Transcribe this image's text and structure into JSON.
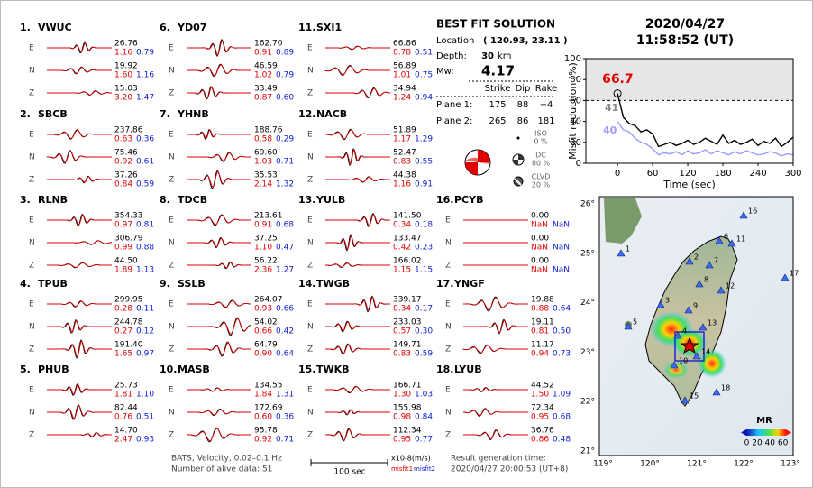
{
  "header": {
    "date": "2020/04/27",
    "time": "11:58:52  (UT)"
  },
  "component_labels": [
    "E",
    "N",
    "Z"
  ],
  "stations": [
    {
      "id": "1.",
      "name": "VWUC",
      "rows": [
        [
          "26.76",
          "1.16",
          "0.79"
        ],
        [
          "19.92",
          "1.60",
          "1.16"
        ],
        [
          "15.03",
          "3.20",
          "1.47"
        ]
      ]
    },
    {
      "id": "2.",
      "name": "SBCB",
      "rows": [
        [
          "237.86",
          "0.63",
          "0.36"
        ],
        [
          "75.46",
          "0.92",
          "0.61"
        ],
        [
          "37.26",
          "0.84",
          "0.59"
        ]
      ]
    },
    {
      "id": "3.",
      "name": "RLNB",
      "rows": [
        [
          "354.33",
          "0.97",
          "0.81"
        ],
        [
          "306.79",
          "0.99",
          "0.88"
        ],
        [
          "44.50",
          "1.89",
          "1.13"
        ]
      ]
    },
    {
      "id": "4.",
      "name": "TPUB",
      "rows": [
        [
          "299.95",
          "0.28",
          "0.11"
        ],
        [
          "244.78",
          "0.27",
          "0.12"
        ],
        [
          "191.40",
          "1.65",
          "0.97"
        ]
      ]
    },
    {
      "id": "5.",
      "name": "PHUB",
      "rows": [
        [
          "25.73",
          "1.81",
          "1.10"
        ],
        [
          "82.44",
          "0.76",
          "0.51"
        ],
        [
          "14.70",
          "2.47",
          "0.93"
        ]
      ]
    },
    {
      "id": "6.",
      "name": "YD07",
      "rows": [
        [
          "162.70",
          "0.91",
          "0.89"
        ],
        [
          "46.59",
          "1.02",
          "0.79"
        ],
        [
          "33.49",
          "0.87",
          "0.60"
        ]
      ]
    },
    {
      "id": "7.",
      "name": "YHNB",
      "rows": [
        [
          "188.76",
          "0.58",
          "0.29"
        ],
        [
          "69.60",
          "1.03",
          "0.71"
        ],
        [
          "35.53",
          "2.14",
          "1.32"
        ]
      ]
    },
    {
      "id": "8.",
      "name": "TDCB",
      "rows": [
        [
          "213.61",
          "0.91",
          "0.68"
        ],
        [
          "37.25",
          "1.10",
          "0.47"
        ],
        [
          "56.22",
          "2.36",
          "1.27"
        ]
      ]
    },
    {
      "id": "9.",
      "name": "SSLB",
      "rows": [
        [
          "264.07",
          "0.93",
          "0.66"
        ],
        [
          "54.02",
          "0.66",
          "0.42"
        ],
        [
          "64.79",
          "0.90",
          "0.64"
        ]
      ]
    },
    {
      "id": "10.",
      "name": "MASB",
      "rows": [
        [
          "134.55",
          "1.84",
          "1.31"
        ],
        [
          "172.69",
          "0.60",
          "0.36"
        ],
        [
          "95.78",
          "0.92",
          "0.71"
        ]
      ]
    },
    {
      "id": "11.",
      "name": "SXI1",
      "rows": [
        [
          "66.86",
          "0.78",
          "0.51"
        ],
        [
          "56.89",
          "1.01",
          "0.75"
        ],
        [
          "34.94",
          "1.24",
          "0.94"
        ]
      ]
    },
    {
      "id": "12.",
      "name": "NACB",
      "rows": [
        [
          "51.89",
          "1.17",
          "1.29"
        ],
        [
          "52.47",
          "0.83",
          "0.55"
        ],
        [
          "44.38",
          "1.16",
          "0.91"
        ]
      ]
    },
    {
      "id": "13.",
      "name": "YULB",
      "rows": [
        [
          "141.50",
          "0.34",
          "0.18"
        ],
        [
          "133.47",
          "0.42",
          "0.23"
        ],
        [
          "166.02",
          "1.15",
          "1.15"
        ]
      ]
    },
    {
      "id": "14.",
      "name": "TWGB",
      "rows": [
        [
          "339.17",
          "0.34",
          "0.17"
        ],
        [
          "233.03",
          "0.57",
          "0.30"
        ],
        [
          "149.71",
          "0.83",
          "0.59"
        ]
      ]
    },
    {
      "id": "15.",
      "name": "TWKB",
      "rows": [
        [
          "166.71",
          "1.30",
          "1.03"
        ],
        [
          "155.98",
          "0.98",
          "0.84"
        ],
        [
          "112.34",
          "0.95",
          "0.77"
        ]
      ]
    },
    {
      "id": "16.",
      "name": "PCYB",
      "rows": [
        [
          "0.00",
          "NaN",
          "NaN"
        ],
        [
          "0.00",
          "NaN",
          "NaN"
        ],
        [
          "0.00",
          "NaN",
          "NaN"
        ]
      ]
    },
    {
      "id": "17.",
      "name": "YNGF",
      "rows": [
        [
          "19.88",
          "0.88",
          "0.64"
        ],
        [
          "19.11",
          "0.81",
          "0.50"
        ],
        [
          "11.17",
          "0.94",
          "0.73"
        ]
      ]
    },
    {
      "id": "18.",
      "name": "LYUB",
      "rows": [
        [
          "44.52",
          "1.50",
          "1.09"
        ],
        [
          "72.34",
          "0.95",
          "0.68"
        ],
        [
          "36.76",
          "0.86",
          "0.48"
        ]
      ]
    }
  ],
  "solution": {
    "title": "BEST FIT SOLUTION",
    "location_label": "Location",
    "location": "( 120.93, 23.11 )",
    "depth_label": "Depth:",
    "depth": "30",
    "depth_unit": "km",
    "mw_label": "Mw:",
    "mw": "4.17",
    "headers": [
      "Strike",
      "Dip",
      "Rake"
    ],
    "planes": [
      {
        "label": "Plane 1:",
        "values": [
          "175",
          "88",
          "−4"
        ]
      },
      {
        "label": "Plane 2:",
        "values": [
          "265",
          "86",
          "181"
        ]
      }
    ],
    "components": [
      {
        "label": "ISO",
        "value": "0 %"
      },
      {
        "label": "DC",
        "value": "80 %"
      },
      {
        "label": "CLVD",
        "value": "20 %"
      }
    ]
  },
  "footer": {
    "filter": "BATS, Velocity, 0.02–0.1 Hz",
    "alive": "Number of alive data: 51",
    "scale": "100 sec",
    "unit": "x10-8(m/s)",
    "misfit1": "misfit1",
    "misfit2": "misfit2",
    "result_label": "Result generation time:",
    "result_time": "2020/04/27 20:00:53 (UT+8)"
  },
  "map": {
    "lat_labels": [
      "26°",
      "25°",
      "24°",
      "23°",
      "22°",
      "21°"
    ],
    "lon_labels": [
      "119°",
      "120°",
      "121°",
      "122°",
      "123°"
    ],
    "station_labels": [
      "1",
      "2",
      "3",
      "4",
      "5",
      "6",
      "7",
      "8",
      "9",
      "10",
      "11",
      "12",
      "13",
      "14",
      "15",
      "16",
      "17",
      "18"
    ],
    "colorbar_title": "MR",
    "colorbar_labels": "0 20 40 60"
  },
  "chart_data": {
    "type": "line",
    "ylabel": "Misfit reduction (%)",
    "xlabel": "Time (sec)",
    "x": [
      0,
      10,
      20,
      30,
      40,
      50,
      60,
      70,
      80,
      90,
      100,
      110,
      120,
      130,
      140,
      150,
      160,
      170,
      180,
      190,
      200,
      210,
      220,
      230,
      240,
      250,
      260,
      270,
      280,
      290,
      300
    ],
    "series": [
      {
        "color": "#000000",
        "values": [
          66.7,
          44,
          38,
          36,
          30,
          32,
          28,
          16,
          18,
          20,
          17,
          19,
          22,
          18,
          20,
          24,
          21,
          18,
          27,
          19,
          22,
          18,
          20,
          23,
          17,
          21,
          19,
          24,
          16,
          20,
          25
        ]
      },
      {
        "color": "#9a9aff",
        "values": [
          40,
          32,
          30,
          24,
          20,
          18,
          14,
          8,
          10,
          9,
          11,
          8,
          12,
          9,
          10,
          13,
          9,
          12,
          10,
          8,
          11,
          9,
          12,
          10,
          8,
          9,
          11,
          10,
          7,
          9,
          8
        ]
      }
    ],
    "annotations": [
      "66.7",
      "41",
      "40"
    ],
    "xlim": [
      -54,
      300
    ],
    "ylim": [
      0,
      100
    ],
    "xticks": [
      0,
      60,
      120,
      180,
      240,
      300
    ],
    "yticks": [
      0,
      20,
      40,
      60,
      80,
      100
    ],
    "hline": 60,
    "band_color": "#e6e6e6"
  }
}
